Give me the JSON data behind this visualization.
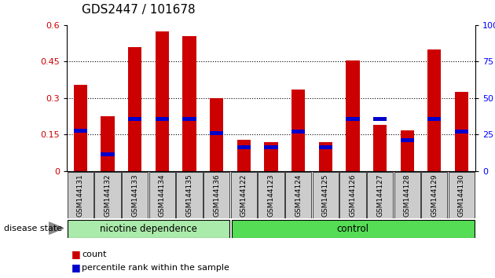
{
  "title": "GDS2447 / 101678",
  "categories": [
    "GSM144131",
    "GSM144132",
    "GSM144133",
    "GSM144134",
    "GSM144135",
    "GSM144136",
    "GSM144122",
    "GSM144123",
    "GSM144124",
    "GSM144125",
    "GSM144126",
    "GSM144127",
    "GSM144128",
    "GSM144129",
    "GSM144130"
  ],
  "count_values": [
    0.355,
    0.225,
    0.51,
    0.575,
    0.555,
    0.3,
    0.127,
    0.118,
    0.335,
    0.118,
    0.455,
    0.19,
    0.168,
    0.5,
    0.325
  ],
  "percentile_values": [
    0.165,
    0.07,
    0.215,
    0.215,
    0.215,
    0.155,
    0.097,
    0.097,
    0.162,
    0.097,
    0.215,
    0.215,
    0.127,
    0.215,
    0.162
  ],
  "bar_color": "#CC0000",
  "percentile_color": "#0000CC",
  "ylim_left": [
    0,
    0.6
  ],
  "ylim_right": [
    0,
    100
  ],
  "yticks_left": [
    0,
    0.15,
    0.3,
    0.45,
    0.6
  ],
  "yticks_right": [
    0,
    25,
    50,
    75,
    100
  ],
  "group1_label": "nicotine dependence",
  "group2_label": "control",
  "group1_count": 6,
  "group2_count": 9,
  "disease_state_label": "disease state",
  "legend_count": "count",
  "legend_percentile": "percentile rank within the sample",
  "tick_label_bg": "#CCCCCC",
  "group_color1": "#AAEAAA",
  "group_color2": "#55DD55",
  "title_fontsize": 11,
  "bar_width": 0.5,
  "pct_bar_height": 0.016
}
